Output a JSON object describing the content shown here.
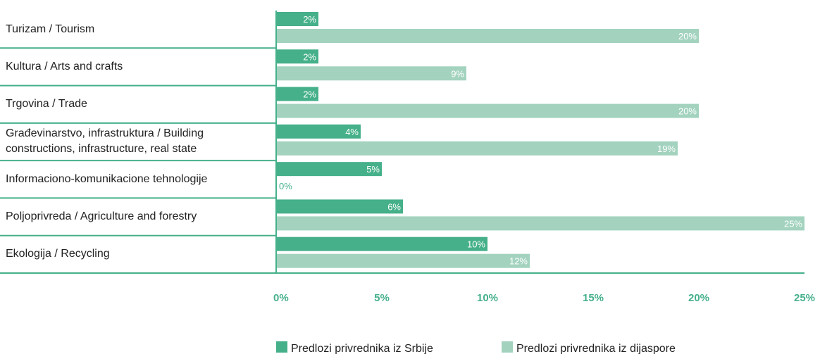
{
  "chart_data": {
    "type": "bar",
    "orientation": "horizontal",
    "categories": [
      "Turizam / Tourism",
      "Kultura / Arts and crafts",
      "Trgovina / Trade",
      "Građevinarstvo, infrastruktura / Building constructions, infrastructure, real state",
      "Informaciono-komunikacione tehnologije",
      "Poljoprivreda / Agriculture and forestry",
      "Ekologija / Recycling"
    ],
    "series": [
      {
        "name": "Predlozi privrednika iz Srbije",
        "color": "#45b08a",
        "values": [
          2,
          2,
          2,
          4,
          5,
          6,
          10
        ],
        "value_labels": [
          "2%",
          "2%",
          "2%",
          "4%",
          "5%",
          "6%",
          "10%"
        ]
      },
      {
        "name": "Predlozi privrednika iz dijaspore",
        "color": "#a3d3bf",
        "values": [
          20,
          9,
          20,
          19,
          0,
          25,
          12
        ],
        "value_labels": [
          "20%",
          "9%",
          "20%",
          "19%",
          "0%",
          "25%",
          "12%"
        ]
      }
    ],
    "xlim": [
      0,
      25
    ],
    "xticks": [
      {
        "value": 0,
        "label": "0%"
      },
      {
        "value": 5,
        "label": "5%"
      },
      {
        "value": 10,
        "label": "10%"
      },
      {
        "value": 15,
        "label": "15%"
      },
      {
        "value": 20,
        "label": "20%"
      },
      {
        "value": 25,
        "label": "25%"
      }
    ],
    "grid": false,
    "legend": "bottom"
  }
}
